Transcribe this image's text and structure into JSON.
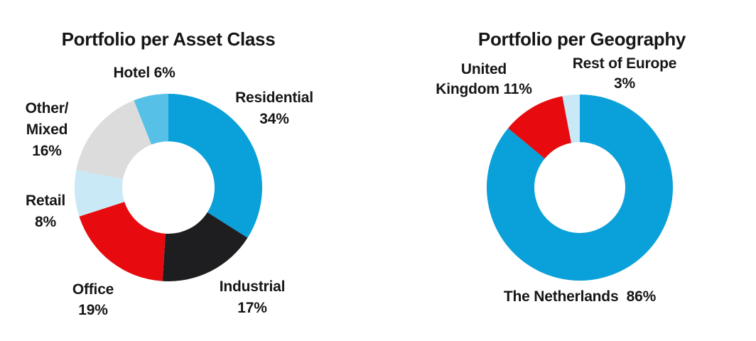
{
  "page": {
    "background_color": "#ffffff",
    "text_color": "#161616"
  },
  "chart_data": [
    {
      "type": "pie",
      "subtype": "donut",
      "title": "Portfolio per Asset Class",
      "categories": [
        "Residential",
        "Industrial",
        "Office",
        "Retail",
        "Other/Mixed",
        "Hotel"
      ],
      "values": [
        34,
        17,
        19,
        8,
        16,
        6
      ],
      "unit": "%",
      "colors": [
        "#0aa0d9",
        "#1e1e21",
        "#e70a0e",
        "#c9e9f6",
        "#dcdcdc",
        "#57c0e7"
      ],
      "start_angle_deg": 0,
      "direction": "clockwise",
      "inner_radius_ratio": 0.49,
      "legend_position": "none",
      "label_lines": [
        [
          "Residential",
          "34%"
        ],
        [
          "Industrial",
          "17%"
        ],
        [
          "Office",
          "19%"
        ],
        [
          "Retail",
          "8%"
        ],
        [
          "Other/",
          "Mixed",
          "16%"
        ],
        [
          "Hotel 6%"
        ]
      ]
    },
    {
      "type": "pie",
      "subtype": "donut",
      "title": "Portfolio per Geography",
      "categories": [
        "The Netherlands",
        "United Kingdom",
        "Rest of Europe"
      ],
      "values": [
        86,
        11,
        3
      ],
      "unit": "%",
      "colors": [
        "#0aa0d9",
        "#e70a0e",
        "#c9e9f6"
      ],
      "start_angle_deg": 0,
      "direction": "clockwise",
      "inner_radius_ratio": 0.49,
      "legend_position": "none",
      "label_lines": [
        [
          "The Netherlands  86%"
        ],
        [
          "United",
          "Kingdom 11%"
        ],
        [
          "Rest of Europe",
          "3%"
        ]
      ]
    }
  ]
}
